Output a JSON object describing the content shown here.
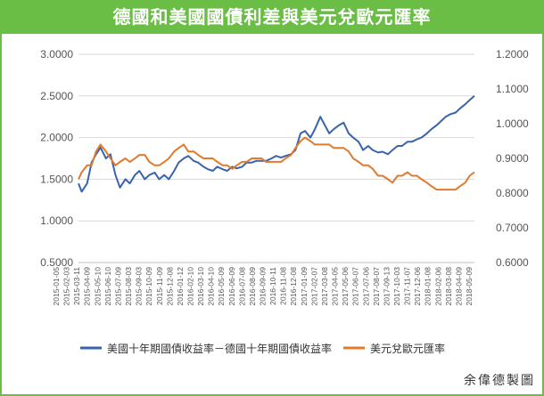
{
  "chart_data": {
    "type": "line",
    "title": "德國和美國國債利差與美元兌歐元匯率",
    "colors": {
      "spread": "#3a63ad",
      "fx": "#e07b2e",
      "frame": "#6abd45",
      "grid": "#d9d9d9"
    },
    "y_left": {
      "ylim": [
        0.5,
        3.0
      ],
      "ticks": [
        "0.5000",
        "1.0000",
        "1.5000",
        "2.0000",
        "2.5000",
        "3.0000"
      ]
    },
    "y_right": {
      "ylim": [
        0.6,
        1.2
      ],
      "ticks": [
        "0.6000",
        "0.7000",
        "0.8000",
        "0.9000",
        "1.0000",
        "1.1000",
        "1.2000"
      ]
    },
    "x_tick_labels": [
      "2015-01-05",
      "2015-02-03",
      "2015-03-11",
      "2015-04-09",
      "2015-05-10",
      "2015-06-10",
      "2015-07-09",
      "2015-08-03",
      "2015-09-03",
      "2015-10-09",
      "2015-11-09",
      "2015-12-08",
      "2016-01-12",
      "2016-02-10",
      "2016-03-10",
      "2016-04-10",
      "2016-05-09",
      "2016-06-09",
      "2016-07-08",
      "2016-08-09",
      "2016-09-09",
      "2016-10-11",
      "2016-11-08",
      "2016-12-08",
      "2017-01-09",
      "2017-02-07",
      "2017-03-08",
      "2017-04-05",
      "2017-05-06",
      "2017-06-07",
      "2017-07-06",
      "2017-08-07",
      "2017-09-13",
      "2017-10-03",
      "2017-11-07",
      "2017-12-06",
      "2018-01-08",
      "2018-02-06",
      "2018-03-08",
      "2018-04-09",
      "2018-05-09"
    ],
    "legend": {
      "placement": "bottom-left"
    },
    "series": [
      {
        "name": "美國十年期國債收益率－德國十年期國債收益率",
        "axis": "left",
        "x": [
          "2015-01-05",
          "2015-01-15",
          "2015-02-01",
          "2015-02-15",
          "2015-03-01",
          "2015-03-15",
          "2015-04-01",
          "2015-04-15",
          "2015-05-01",
          "2015-05-15",
          "2015-06-01",
          "2015-06-15",
          "2015-07-01",
          "2015-07-15",
          "2015-08-01",
          "2015-08-15",
          "2015-09-01",
          "2015-09-15",
          "2015-10-01",
          "2015-10-15",
          "2015-11-01",
          "2015-11-15",
          "2015-12-01",
          "2015-12-15",
          "2016-01-01",
          "2016-01-15",
          "2016-02-01",
          "2016-02-15",
          "2016-03-01",
          "2016-03-15",
          "2016-04-01",
          "2016-04-15",
          "2016-05-01",
          "2016-05-15",
          "2016-06-01",
          "2016-06-15",
          "2016-07-01",
          "2016-07-15",
          "2016-08-01",
          "2016-08-15",
          "2016-09-01",
          "2016-09-15",
          "2016-10-01",
          "2016-10-15",
          "2016-11-01",
          "2016-11-15",
          "2016-12-01",
          "2016-12-15",
          "2017-01-01",
          "2017-01-15",
          "2017-02-01",
          "2017-02-15",
          "2017-03-01",
          "2017-03-15",
          "2017-04-01",
          "2017-04-15",
          "2017-05-01",
          "2017-05-15",
          "2017-06-01",
          "2017-06-15",
          "2017-07-01",
          "2017-07-15",
          "2017-08-01",
          "2017-08-15",
          "2017-09-01",
          "2017-09-15",
          "2017-10-01",
          "2017-10-15",
          "2017-11-01",
          "2017-11-15",
          "2017-12-01",
          "2017-12-15",
          "2018-01-01",
          "2018-01-15",
          "2018-02-01",
          "2018-02-15",
          "2018-03-01",
          "2018-03-15",
          "2018-04-01",
          "2018-04-15",
          "2018-05-01",
          "2018-05-15",
          "2018-05-30"
        ],
        "values": [
          1.45,
          1.35,
          1.45,
          1.7,
          1.8,
          1.88,
          1.75,
          1.8,
          1.55,
          1.4,
          1.5,
          1.45,
          1.55,
          1.6,
          1.5,
          1.55,
          1.58,
          1.5,
          1.55,
          1.5,
          1.6,
          1.7,
          1.75,
          1.78,
          1.72,
          1.7,
          1.65,
          1.62,
          1.6,
          1.65,
          1.62,
          1.6,
          1.65,
          1.63,
          1.65,
          1.7,
          1.7,
          1.72,
          1.72,
          1.72,
          1.75,
          1.78,
          1.76,
          1.78,
          1.8,
          1.85,
          2.05,
          2.08,
          2.0,
          2.1,
          2.25,
          2.15,
          2.05,
          2.1,
          2.15,
          2.18,
          2.05,
          2.0,
          1.95,
          1.85,
          1.9,
          1.85,
          1.82,
          1.83,
          1.8,
          1.85,
          1.9,
          1.9,
          1.95,
          1.95,
          1.98,
          2.0,
          2.05,
          2.1,
          2.15,
          2.2,
          2.25,
          2.28,
          2.3,
          2.35,
          2.4,
          2.45,
          2.5
        ]
      },
      {
        "name": "美元兌歐元匯率",
        "axis": "right",
        "x": [
          "2015-01-05",
          "2015-01-15",
          "2015-02-01",
          "2015-02-15",
          "2015-03-01",
          "2015-03-15",
          "2015-04-01",
          "2015-04-15",
          "2015-05-01",
          "2015-05-15",
          "2015-06-01",
          "2015-06-15",
          "2015-07-01",
          "2015-07-15",
          "2015-08-01",
          "2015-08-15",
          "2015-09-01",
          "2015-09-15",
          "2015-10-01",
          "2015-10-15",
          "2015-11-01",
          "2015-11-15",
          "2015-12-01",
          "2015-12-15",
          "2016-01-01",
          "2016-01-15",
          "2016-02-01",
          "2016-02-15",
          "2016-03-01",
          "2016-03-15",
          "2016-04-01",
          "2016-04-15",
          "2016-05-01",
          "2016-05-15",
          "2016-06-01",
          "2016-06-15",
          "2016-07-01",
          "2016-07-15",
          "2016-08-01",
          "2016-08-15",
          "2016-09-01",
          "2016-09-15",
          "2016-10-01",
          "2016-10-15",
          "2016-11-01",
          "2016-11-15",
          "2016-12-01",
          "2016-12-15",
          "2017-01-01",
          "2017-01-15",
          "2017-02-01",
          "2017-02-15",
          "2017-03-01",
          "2017-03-15",
          "2017-04-01",
          "2017-04-15",
          "2017-05-01",
          "2017-05-15",
          "2017-06-01",
          "2017-06-15",
          "2017-07-01",
          "2017-07-15",
          "2017-08-01",
          "2017-08-15",
          "2017-09-01",
          "2017-09-15",
          "2017-10-01",
          "2017-10-15",
          "2017-11-01",
          "2017-11-15",
          "2017-12-01",
          "2017-12-15",
          "2018-01-01",
          "2018-01-15",
          "2018-02-01",
          "2018-02-15",
          "2018-03-01",
          "2018-03-15",
          "2018-04-01",
          "2018-04-15",
          "2018-05-01",
          "2018-05-15",
          "2018-05-30"
        ],
        "values": [
          0.84,
          0.86,
          0.88,
          0.88,
          0.92,
          0.94,
          0.92,
          0.9,
          0.88,
          0.89,
          0.9,
          0.89,
          0.9,
          0.91,
          0.91,
          0.89,
          0.88,
          0.88,
          0.89,
          0.9,
          0.92,
          0.93,
          0.94,
          0.92,
          0.92,
          0.91,
          0.9,
          0.9,
          0.9,
          0.89,
          0.88,
          0.88,
          0.87,
          0.88,
          0.89,
          0.89,
          0.9,
          0.9,
          0.9,
          0.89,
          0.89,
          0.89,
          0.89,
          0.9,
          0.91,
          0.93,
          0.95,
          0.96,
          0.95,
          0.94,
          0.94,
          0.94,
          0.94,
          0.93,
          0.93,
          0.93,
          0.92,
          0.9,
          0.89,
          0.88,
          0.88,
          0.87,
          0.85,
          0.85,
          0.84,
          0.83,
          0.85,
          0.85,
          0.86,
          0.85,
          0.85,
          0.84,
          0.83,
          0.82,
          0.81,
          0.81,
          0.81,
          0.81,
          0.81,
          0.82,
          0.83,
          0.85,
          0.86
        ]
      }
    ]
  },
  "credit": "余偉德製圖"
}
